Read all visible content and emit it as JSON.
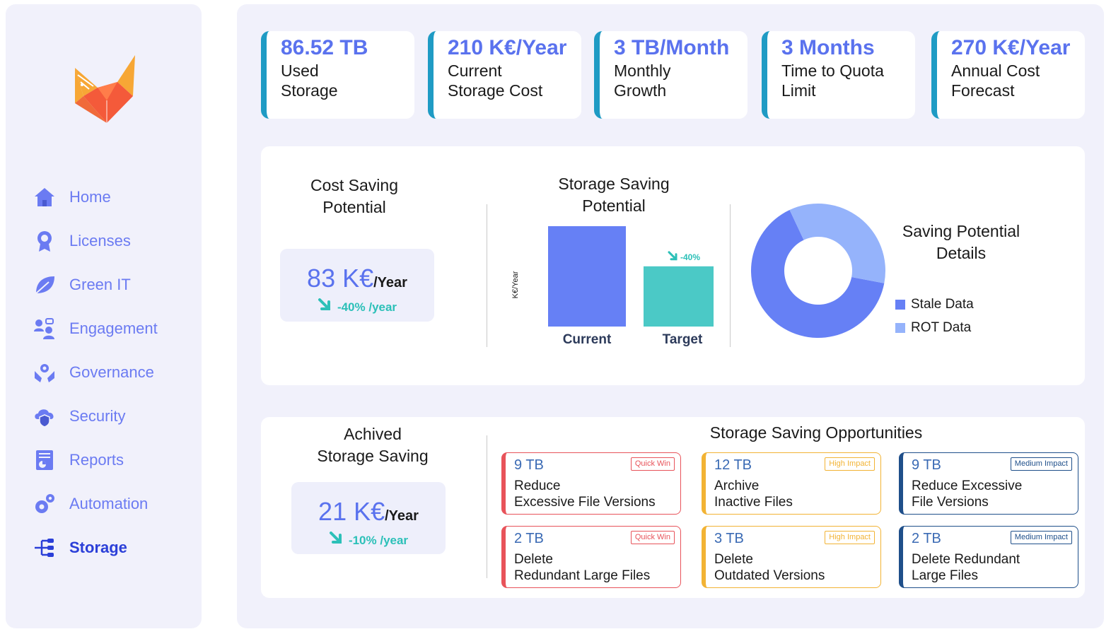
{
  "sidebar": {
    "items": [
      {
        "label": "Home",
        "icon": "home-icon"
      },
      {
        "label": "Licenses",
        "icon": "badge-icon"
      },
      {
        "label": "Green IT",
        "icon": "leaf-icon"
      },
      {
        "label": "Engagement",
        "icon": "people-icon"
      },
      {
        "label": "Governance",
        "icon": "hands-gear-icon"
      },
      {
        "label": "Security",
        "icon": "cloud-shield-icon"
      },
      {
        "label": "Reports",
        "icon": "report-icon"
      },
      {
        "label": "Automation",
        "icon": "gears-icon"
      },
      {
        "label": "Storage",
        "icon": "storage-tree-icon",
        "active": true
      }
    ]
  },
  "kpis": [
    {
      "value": "86.52 TB",
      "label_line1": "Used",
      "label_line2": "Storage"
    },
    {
      "value": "210 K€/Year",
      "label_line1": "Current",
      "label_line2": "Storage Cost"
    },
    {
      "value": "3 TB/Month",
      "label_line1": "Monthly",
      "label_line2": "Growth"
    },
    {
      "value": "3 Months",
      "label_line1": "Time to Quota",
      "label_line2": "Limit"
    },
    {
      "value": "270 K€/Year",
      "label_line1": "Annual Cost",
      "label_line2": "Forecast"
    }
  ],
  "cost_saving": {
    "title_line1": "Cost Saving",
    "title_line2": "Potential",
    "amount": "83 K€",
    "unit": "/Year",
    "change": "-40% /year"
  },
  "storage_saving": {
    "title_line1": "Storage Saving",
    "title_line2": "Potential",
    "ylabel": "K€/Year",
    "bar_change": "-40%"
  },
  "saving_details": {
    "title_line1": "Saving Potential",
    "title_line2": "Details"
  },
  "achieved": {
    "title_line1": "Achived",
    "title_line2": "Storage Saving",
    "amount": "21 K€",
    "unit": "/Year",
    "change": "-10% /year"
  },
  "opportunities": {
    "title": "Storage Saving Opportunities",
    "cards": [
      {
        "size": "9 TB",
        "badge": "Quick Win",
        "line1": "Reduce",
        "line2": "Excessive File Versions",
        "color": "#e8535a"
      },
      {
        "size": "12 TB",
        "badge": "High Impact",
        "line1": "Archive",
        "line2": "Inactive Files",
        "color": "#f2b334"
      },
      {
        "size": "9 TB",
        "badge": "Medium Impact",
        "line1": "Reduce Excessive",
        "line2": "File Versions",
        "color": "#1f4f8a"
      },
      {
        "size": "2 TB",
        "badge": "Quick Win",
        "line1": "Delete",
        "line2": "Redundant Large Files",
        "color": "#e8535a"
      },
      {
        "size": "3 TB",
        "badge": "High Impact",
        "line1": "Delete",
        "line2": "Outdated Versions",
        "color": "#f2b334"
      },
      {
        "size": "2 TB",
        "badge": "Medium Impact",
        "line1": "Delete Redundant",
        "line2": "Large Files",
        "color": "#1f4f8a"
      }
    ]
  },
  "colors": {
    "accent": "#5a72ee",
    "kpi_border": "#1f9bc4",
    "teal": "#2cc0b8",
    "bar_current": "#6680f5",
    "bar_target": "#4bc9c6",
    "donut_stale": "#6680f5",
    "donut_rot": "#95b3fb"
  },
  "chart_data": [
    {
      "type": "bar",
      "categories": [
        "Current",
        "Target"
      ],
      "values": [
        100,
        60
      ],
      "ylabel": "K€/Year",
      "annotation": "-40%"
    },
    {
      "type": "pie",
      "categories": [
        "Stale Data",
        "ROT Data"
      ],
      "values": [
        65,
        35
      ],
      "legend": "right"
    }
  ]
}
